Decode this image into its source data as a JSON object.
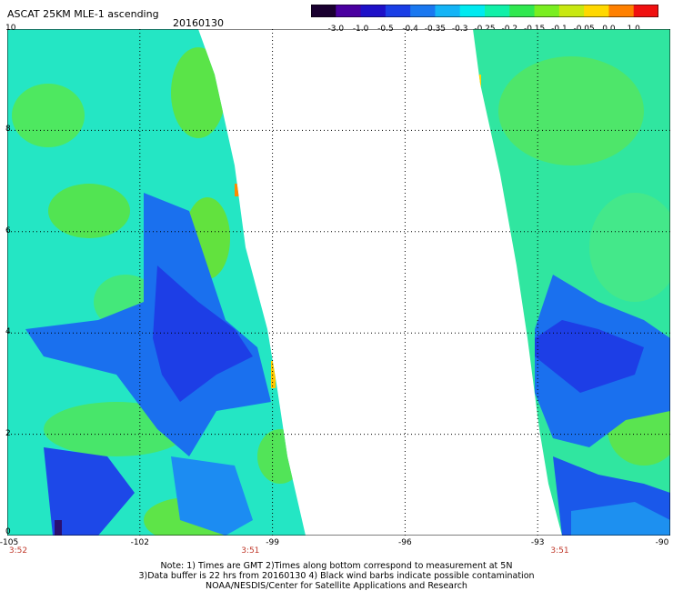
{
  "header": {
    "title": "ASCAT 25KM MLE-1 ascending",
    "date": "20160130"
  },
  "colorbar": {
    "labels": [
      "-3.0",
      "-1.0",
      "-0.5",
      "-0.4",
      "-0.35",
      "-0.3",
      "-0.25",
      "-0.2",
      "-0.15",
      "-0.1",
      "-0.05",
      "0.0",
      "1.0"
    ],
    "colors": [
      "#1a0030",
      "#4a00a0",
      "#1e10c8",
      "#1a3ee6",
      "#1a78f0",
      "#14b4f6",
      "#00eaf0",
      "#10f0a8",
      "#30e850",
      "#7aee20",
      "#c8e810",
      "#ffd800",
      "#ff8000",
      "#f01010"
    ]
  },
  "map": {
    "x_axis_labels": [
      "-105",
      "-102",
      "-99",
      "-96",
      "-93",
      "-90"
    ],
    "y_axis_labels": [
      "0",
      "2",
      "4",
      "6",
      "8",
      "10"
    ],
    "time_labels": [
      {
        "text": "3:52",
        "lon": -105
      },
      {
        "text": "3:51",
        "lon": -99.5
      },
      {
        "text": "3:51",
        "lon": -92.5
      }
    ],
    "xlim": [
      -105,
      -90
    ],
    "ylim": [
      0,
      10
    ]
  },
  "notes": {
    "line1": "Note: 1) Times are GMT 2)Times along bottom correspond to measurement at 5N",
    "line2": "3)Data buffer is 22 hrs from 20160130 4) Black wind barbs indicate possible contamination",
    "line3": "NOAA/NESDIS/Center for Satellite Applications and Research"
  }
}
